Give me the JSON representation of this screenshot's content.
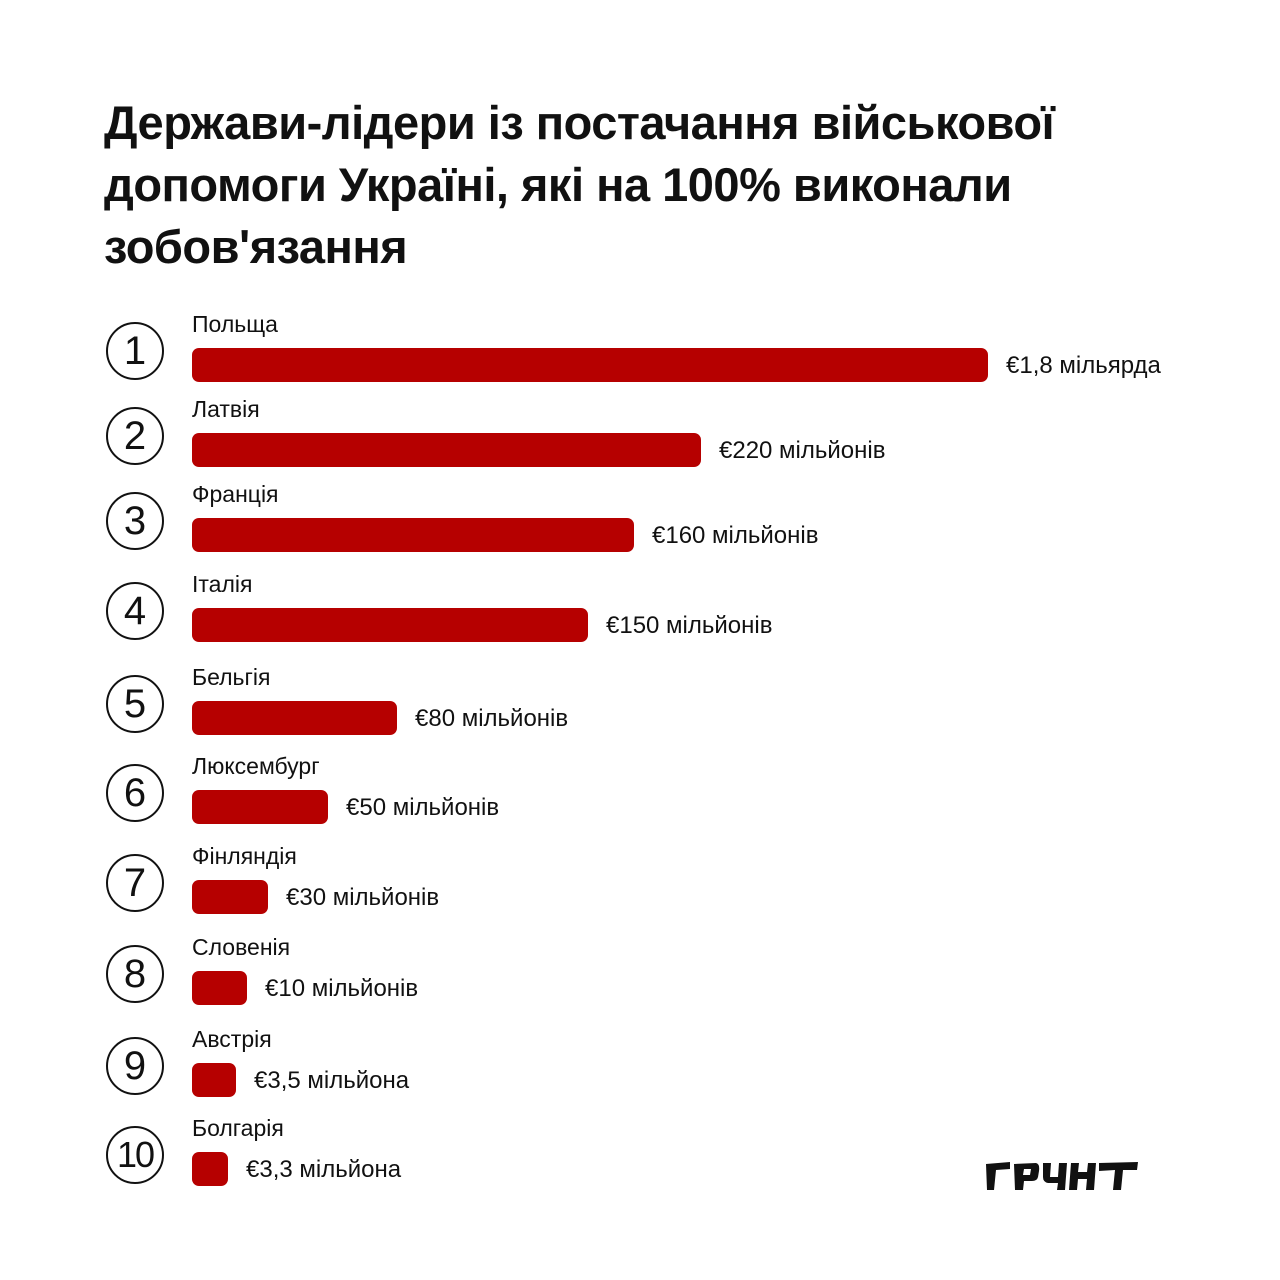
{
  "title": "Держави-лідери із постачання військової допомоги Україні, які на 100% виконали зобов'язання",
  "logo_text": "ҐРУНТ",
  "colors": {
    "bar": "#b60000",
    "text": "#111111",
    "background": "#ffffff"
  },
  "chart_data": {
    "type": "bar",
    "orientation": "horizontal",
    "title": "Держави-лідери із постачання військової допомоги Україні, які на 100% виконали зобов'язання",
    "unit": "€ million",
    "categories": [
      "Польща",
      "Латвія",
      "Франція",
      "Італія",
      "Бельгія",
      "Люксембург",
      "Фінляндія",
      "Словенія",
      "Австрія",
      "Болгарія"
    ],
    "values": [
      1800,
      220,
      160,
      150,
      80,
      50,
      30,
      10,
      3.5,
      3.3
    ],
    "ranks": [
      "1",
      "2",
      "3",
      "4",
      "5",
      "6",
      "7",
      "8",
      "9",
      "10"
    ],
    "value_labels": [
      "€1,8 мільярда",
      "€220 мільйонів",
      "€160 мільйонів",
      "€150 мільйонів",
      "€80 мільйонів",
      "€50 мільйонів",
      "€30 мільйонів",
      "€10 мільйонів",
      "€3,5 мільйона",
      "€3,3 мільйона"
    ],
    "bar_fill_fractions": [
      1.0,
      0.64,
      0.555,
      0.497,
      0.257,
      0.171,
      0.096,
      0.069,
      0.055,
      0.045
    ],
    "grid": false,
    "legend": "none"
  }
}
